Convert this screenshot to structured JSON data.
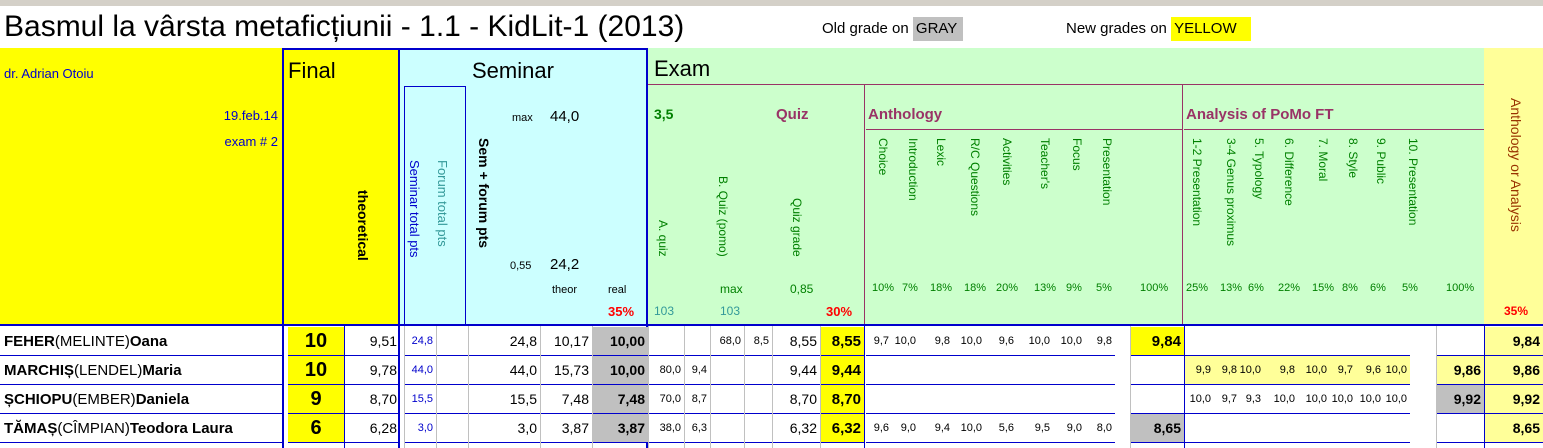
{
  "header": {
    "title": "Basmul la vârsta metaficțiunii - 1.1 - KidLit-1 (2013)",
    "legend_old_label": "Old grade on",
    "legend_old_color_word": "GRAY",
    "legend_new_label": "New grades on",
    "legend_new_color_word": "YELLOW",
    "colors": {
      "gray": "#c0c0c0",
      "yellow": "#ffff00",
      "cyan": "#ccffff",
      "green": "#ccffcc",
      "blue_border": "#0000cc"
    }
  },
  "info": {
    "teacher": "dr. Adrian Otoiu",
    "date": "19.feb.14",
    "exam": "exam # 2"
  },
  "final": {
    "title": "Final",
    "theoretical": "theoretical"
  },
  "seminar": {
    "title": "Seminar",
    "col_total": "Seminar total pts",
    "col_forum": "Forum total pts",
    "col_sum": "Sem + forum pts",
    "max_label": "max",
    "max_value": "44,0",
    "ratio": "0,55",
    "ratio_value": "24,2",
    "theor": "theor",
    "real": "real",
    "weight": "35%"
  },
  "exam": {
    "title": "Exam",
    "quiz_threshold": "3,5",
    "quiz_title": "Quiz",
    "col_a_quiz": "A. quiz",
    "col_b_quiz": "B. Quiz (pomo)",
    "col_quiz_grade": "Quiz grade",
    "max_label": "max",
    "max_value": "0,85",
    "a_count": "103",
    "b_count": "103",
    "quiz_weight": "30%",
    "anthology_title": "Anthology",
    "anthology_cols": [
      {
        "name": "Choice",
        "pct": "10%"
      },
      {
        "name": "Introduction",
        "pct": "7%"
      },
      {
        "name": "Lexic",
        "pct": "18%"
      },
      {
        "name": "R/C Questions",
        "pct": "18%"
      },
      {
        "name": "Activities",
        "pct": "20%"
      },
      {
        "name": "Teacher's",
        "pct": "13%"
      },
      {
        "name": "Focus",
        "pct": "9%"
      },
      {
        "name": "Presentation",
        "pct": "5%"
      }
    ],
    "anthology_total": "100%",
    "analysis_title": "Analysis of PoMo FT",
    "analysis_cols": [
      {
        "name": "1-2 Presentation",
        "pct": "25%"
      },
      {
        "name": "3-4 Genus proximus",
        "pct": "13%"
      },
      {
        "name": "5. Typology",
        "pct": "6%"
      },
      {
        "name": "6. Difference",
        "pct": "22%"
      },
      {
        "name": "7. Moral",
        "pct": "15%"
      },
      {
        "name": "8. Style",
        "pct": "8%"
      },
      {
        "name": "9. Public",
        "pct": "6%"
      },
      {
        "name": "10. Presentation",
        "pct": "5%"
      }
    ],
    "analysis_total": "100%",
    "aoa_title": "Anthology or Analysis",
    "aoa_weight": "35%"
  },
  "students": [
    {
      "surname": "FEHER",
      "maiden": "(MELINTE)",
      "given": "Oana",
      "final": "10",
      "theoretical": "9,51",
      "sem_total": "24,8",
      "forum": "",
      "sem_sum": "24,8",
      "theor": "10,17",
      "real": "10,00",
      "a_pts": "",
      "a_grade": "",
      "b_pts": "68,0",
      "b_grade": "8,5",
      "quiz_grade": "8,55",
      "quiz_final": "8,55",
      "anth": [
        "9,7",
        "10,0",
        "9,8",
        "10,0",
        "9,6",
        "10,0",
        "10,0",
        "9,8"
      ],
      "anth_total": "9,84",
      "anal": [
        "",
        "",
        "",
        "",
        "",
        "",
        "",
        ""
      ],
      "anal_total": "",
      "aoa": "9,84"
    },
    {
      "surname": "MARCHIȘ",
      "maiden": "(LENDEL)",
      "given": "Maria",
      "final": "10",
      "theoretical": "9,78",
      "sem_total": "44,0",
      "forum": "",
      "sem_sum": "44,0",
      "theor": "15,73",
      "real": "10,00",
      "a_pts": "80,0",
      "a_grade": "9,4",
      "b_pts": "",
      "b_grade": "",
      "quiz_grade": "9,44",
      "quiz_final": "9,44",
      "anth": [
        "",
        "",
        "",
        "",
        "",
        "",
        "",
        ""
      ],
      "anth_total": "",
      "anal": [
        "9,9",
        "9,8",
        "10,0",
        "9,8",
        "10,0",
        "9,7",
        "9,6",
        "10,0"
      ],
      "anal_total": "9,86",
      "aoa": "9,86"
    },
    {
      "surname": "ȘCHIOPU",
      "maiden": "(EMBER)",
      "given": "Daniela",
      "final": "9",
      "theoretical": "8,70",
      "sem_total": "15,5",
      "forum": "",
      "sem_sum": "15,5",
      "theor": "7,48",
      "real": "7,48",
      "a_pts": "70,0",
      "a_grade": "8,7",
      "b_pts": "",
      "b_grade": "",
      "quiz_grade": "8,70",
      "quiz_final": "8,70",
      "anth": [
        "",
        "",
        "",
        "",
        "",
        "",
        "",
        ""
      ],
      "anth_total": "",
      "anal": [
        "10,0",
        "9,7",
        "9,3",
        "10,0",
        "10,0",
        "10,0",
        "10,0",
        "10,0"
      ],
      "anal_total": "9,92",
      "aoa": "9,92"
    },
    {
      "surname": "TĂMAȘ",
      "maiden": "(CÎMPIAN)",
      "given": "Teodora Laura",
      "final": "6",
      "theoretical": "6,28",
      "sem_total": "3,0",
      "forum": "",
      "sem_sum": "3,0",
      "theor": "3,87",
      "real": "3,87",
      "a_pts": "38,0",
      "a_grade": "6,3",
      "b_pts": "",
      "b_grade": "",
      "quiz_grade": "6,32",
      "quiz_final": "6,32",
      "anth": [
        "9,6",
        "9,0",
        "9,4",
        "10,0",
        "5,6",
        "9,5",
        "9,0",
        "8,0"
      ],
      "anth_total": "8,65",
      "anal": [
        "",
        "",
        "",
        "",
        "",
        "",
        "",
        ""
      ],
      "anal_total": "",
      "aoa": "8,65"
    }
  ]
}
